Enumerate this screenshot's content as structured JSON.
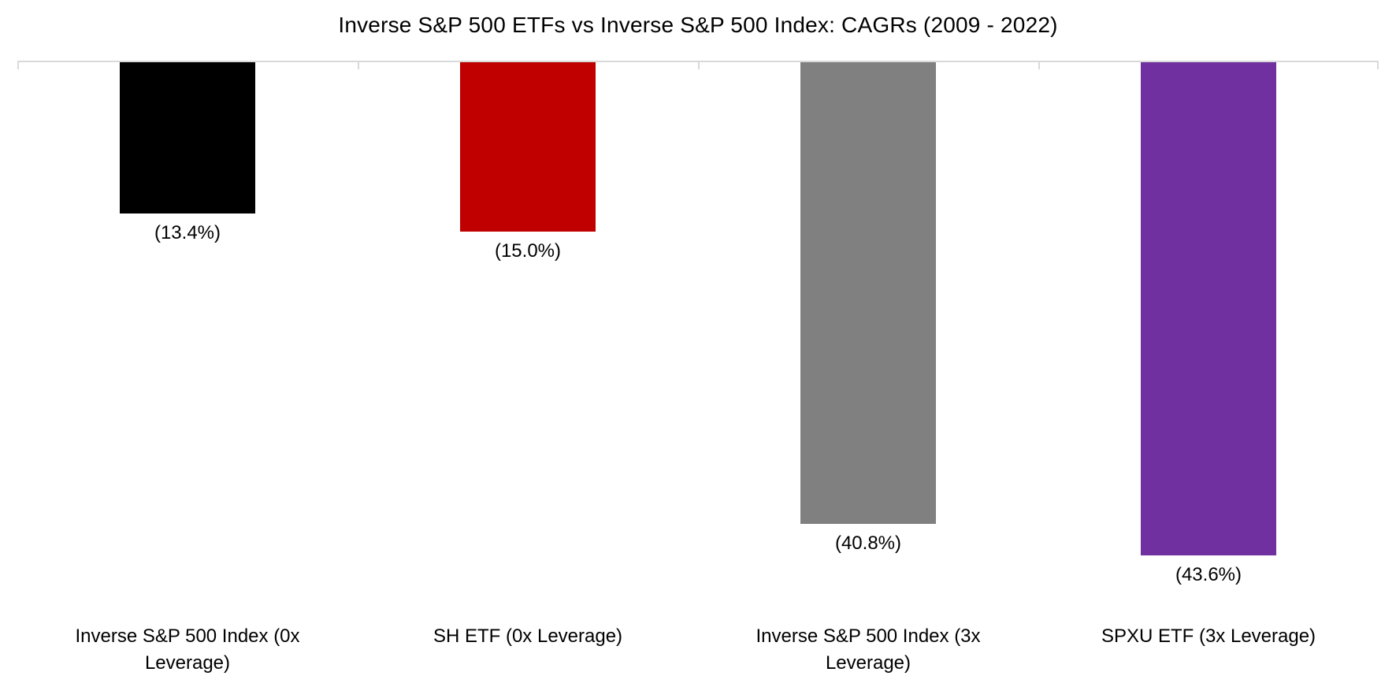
{
  "chart_data": {
    "type": "bar",
    "title": "Inverse S&P 500 ETFs vs Inverse S&P 500 Index: CAGRs (2009 - 2022)",
    "categories": [
      "Inverse S&P 500 Index (0x Leverage)",
      "SH ETF (0x Leverage)",
      "Inverse S&P 500 Index (3x Leverage)",
      "SPXU ETF (3x Leverage)"
    ],
    "values": [
      -13.4,
      -15.0,
      -40.8,
      -43.6
    ],
    "data_labels": [
      "(13.4%)",
      "(15.0%)",
      "(40.8%)",
      "(43.6%)"
    ],
    "bar_colors": [
      "#000000",
      "#c00000",
      "#808080",
      "#7030a0"
    ],
    "xlabel": "",
    "ylabel": "",
    "ylim": [
      -45,
      0
    ],
    "baseline_at_top": true,
    "grid": false,
    "legend": false,
    "axis_line_color": "#d9d9d9",
    "text_color": "#000000",
    "background_color": "#ffffff"
  }
}
